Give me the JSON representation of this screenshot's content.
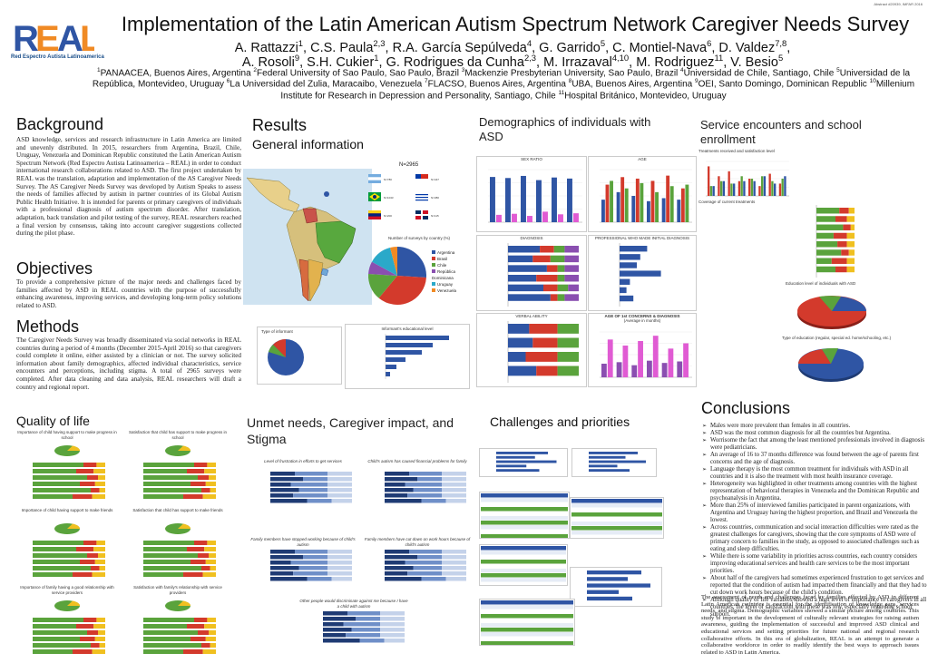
{
  "abstract_id": "Abstract #20939, IMFAR 2016",
  "logo": {
    "text": "REAL",
    "caption": "Red Espectro Autista Latinoamerica"
  },
  "title": "Implementation of the Latin American Autism Spectrum Network Caregiver Needs Survey",
  "authors": {
    "line1": [
      {
        "name": "A. Rattazzi",
        "sup": "1"
      },
      {
        "name": "C.S. Paula",
        "sup": "2,3"
      },
      {
        "name": "R.A. García Sepúlveda",
        "sup": "4"
      },
      {
        "name": "G. Garrido",
        "sup": "5"
      },
      {
        "name": "C. Montiel-Nava",
        "sup": "6"
      },
      {
        "name": "D. Valdez",
        "sup": "7,8"
      }
    ],
    "line2": [
      {
        "name": "A. Rosoli",
        "sup": "9"
      },
      {
        "name": "S.H. Cukier",
        "sup": "1"
      },
      {
        "name": "G. Rodrigues da Cunha",
        "sup": "2,3"
      },
      {
        "name": "M. Irrazaval",
        "sup": "4,10"
      },
      {
        "name": "M. Rodriguez",
        "sup": "11"
      },
      {
        "name": "V. Besio",
        "sup": "5"
      }
    ]
  },
  "affiliations": [
    {
      "sup": "1",
      "text": "PANAACEA, Buenos Aires, Argentina"
    },
    {
      "sup": "2",
      "text": "Federal University of Sao Paulo, Sao Paulo, Brazil"
    },
    {
      "sup": "3",
      "text": "Mackenzie Presbyterian University, Sao Paulo, Brazil"
    },
    {
      "sup": "4",
      "text": "Universidad de Chile, Santiago, Chile"
    },
    {
      "sup": "5",
      "text": "Universidad de la República, Montevideo, Uruguay"
    },
    {
      "sup": "6",
      "text": "La Universidad del Zulia, Maracaibo, Venezuela"
    },
    {
      "sup": "7",
      "text": "FLACSO, Buenos Aires, Argentina"
    },
    {
      "sup": "8",
      "text": "UBA, Buenos Aires, Argentina"
    },
    {
      "sup": "9",
      "text": "OEI, Santo Domingo, Dominican Republic"
    },
    {
      "sup": "10",
      "text": "Millenium Institute for Research in Depression and Personality, Santiago, Chile"
    },
    {
      "sup": "11",
      "text": "Hospital Británico, Montevideo, Uruguay"
    }
  ],
  "sections": {
    "background": {
      "heading": "Background",
      "text": "ASD knowledge, services and research infrastructure in Latin America are limited and unevenly distributed. In 2015, researchers from Argentina, Brazil, Chile, Uruguay, Venezuela and Dominican Republic constituted the Latin American Autism Spectrum Network (Red Espectro Autista Latinoamerica – REAL) in order to conduct international research collaborations related to ASD. The first project undertaken by REAL was the translation, adaptation and implementation of the AS Caregiver Needs Survey. The AS Caregiver Needs Survey was developed by Autism Speaks to assess the needs of families affected by autism in partner countries of its Global Autism Public Health Initiative. It is intended for parents or primary caregivers of individuals with a professional diagnosis of autism spectrum disorder. After translation, adaptation, back translation and pilot testing of the survey, REAL researchers reached a final version by consensus, taking into account caregiver suggestions collected during the pilot phase."
    },
    "objectives": {
      "heading": "Objectives",
      "text": "To provide a comprehensive picture of the major needs and challenges faced by families affected by ASD in REAL countries with the purpose of successfully enhancing awareness, improving services, and developing long-term policy solutions related to ASD."
    },
    "methods": {
      "heading": "Methods",
      "text": "The Caregiver Needs Survey was broadly disseminated via social networks in REAL countries during a period of 4 months (December 2015-April 2016) so that caregivers could complete it online, either assisted by a clinician or not. The survey solicited information about family demographics, affected individual characteristics, service encounters and perceptions, including stigma. A total of 2965 surveys were completed. After data cleaning and data analysis, REAL researchers will draft a country and regional report."
    },
    "results": {
      "heading": "Results",
      "subheading": "General information",
      "n_label": "N=2965",
      "pie_title": "Number of surveys by country (%)",
      "countries": [
        "Argentina",
        "Brasil",
        "Chile",
        "República Dominicana",
        "Uruguay",
        "Venezuela"
      ],
      "type_informant": "Type of informant",
      "informant_edu": "Informant's educational level"
    },
    "demographics": {
      "heading": "Demographics of individuals with ASD",
      "sex": "SEX RATIO",
      "age": "AGE",
      "diagnosis": "DIAGNOSIS",
      "prof": "PROFESSIONAL WHO MADE INITIAL DIAGNOSIS",
      "verbal": "VERBAL ABILITY",
      "concern": "AGE OF 1st CONCERNS & DIAGNOSIS",
      "concern_sub": "(Average in months)"
    },
    "service": {
      "heading": "Service encounters and school enrollment",
      "chart1": "Treatments received and satisfaction level",
      "chart2": "Coverage of current treatments",
      "chart3": "Education level of individuals with ASD",
      "chart4": "Type of education (regular, special ed. home/schooling, etc.)"
    },
    "quality": {
      "heading": "Quality of life",
      "charts": [
        "Importance of child having support to make progress in school",
        "Satisfaction that child has support to make progress in school",
        "Importance of child having support to make friends",
        "Satisfaction that child has support to make friends",
        "Importance of family having a good relationship with service providers",
        "Satisfaction with family's relationship with service providers"
      ]
    },
    "unmet": {
      "heading": "Unmet needs, Caregiver impact, and Stigma",
      "charts": [
        "Level of frustration in efforts to get services",
        "Child's autism has caused financial problems for family",
        "Family members have stopped working because of child's autism",
        "Family members have cut down on work hours because of child's autism",
        "Other people would discriminate against me because I have a child with autism"
      ]
    },
    "challenges": {
      "heading": "Challenges and priorities"
    },
    "conclusions": {
      "heading": "Conclusions",
      "bullets": [
        "Males were more prevalent than females in all countries.",
        "ASD was the most common diagnosis for all the countries but Argentina.",
        "Worrisome the fact that among the least mentioned professionals involved in diagnosis were pediatricians.",
        "An average of 16 to 37 months difference was found between the age of parents first concerns and the age of diagnosis.",
        "Language therapy is the most common treatment for individuals with ASD in all countries and it is also the treatment with most health insurance coverage.",
        "Heterogeneity was highlighted in other treatments among countries with the highest representation of behavioral therapies in Venezuela and the Dominican Republic and psychoanalysis in Argentina.",
        "More than 25% of interviewed families participated in parent organizations, with Argentina and Uruguay having the highest proportion, and Brazil and Venezuela the lowest.",
        "Across countries, communication and social interaction difficulties were rated as the greatest challenges for caregivers, showing that the core symptoms of ASD were of primary concern to families in the study, as opposed to associated challenges such as eating and sleep difficulties.",
        "While there is some variability in priorities across countries, each country considers improving educational services and health care services to be the most important priorities.",
        "About half of the caregivers had sometimes experienced frustration to get services and reported that the condition of autism had impacted them financially and that they had to cut down work hours because of the child's condition.",
        "Although quality of life variables showed a high level of importance to caregivers in all countries, the level of satisfaction with these was low, especially regarding school support."
      ],
      "closing": "The assessment of needs and challenges faced by families affected by ASD in different Latin American countries is essential for the identification of knowledge gaps, services needs, and stigma. Demographic variables showed a similar picture among countries. This study is important in the development of culturally relevant strategies for raising autism awareness, guiding the implementation of successful and improved ASD clinical and educational services and setting priorities for future national and regional research collaborative efforts. In this era of globalization, REAL is an attempt to generate a collaborative workforce in order to readily identify the best ways to approach issues related to ASD in Latin America."
    }
  },
  "colors": {
    "blue": "#2f55a4",
    "red": "#d33a2c",
    "green": "#5aa33c",
    "orange": "#f08a24",
    "purple": "#8a4fb0",
    "pink": "#e05bd3",
    "gray": "#9aa4b0"
  }
}
